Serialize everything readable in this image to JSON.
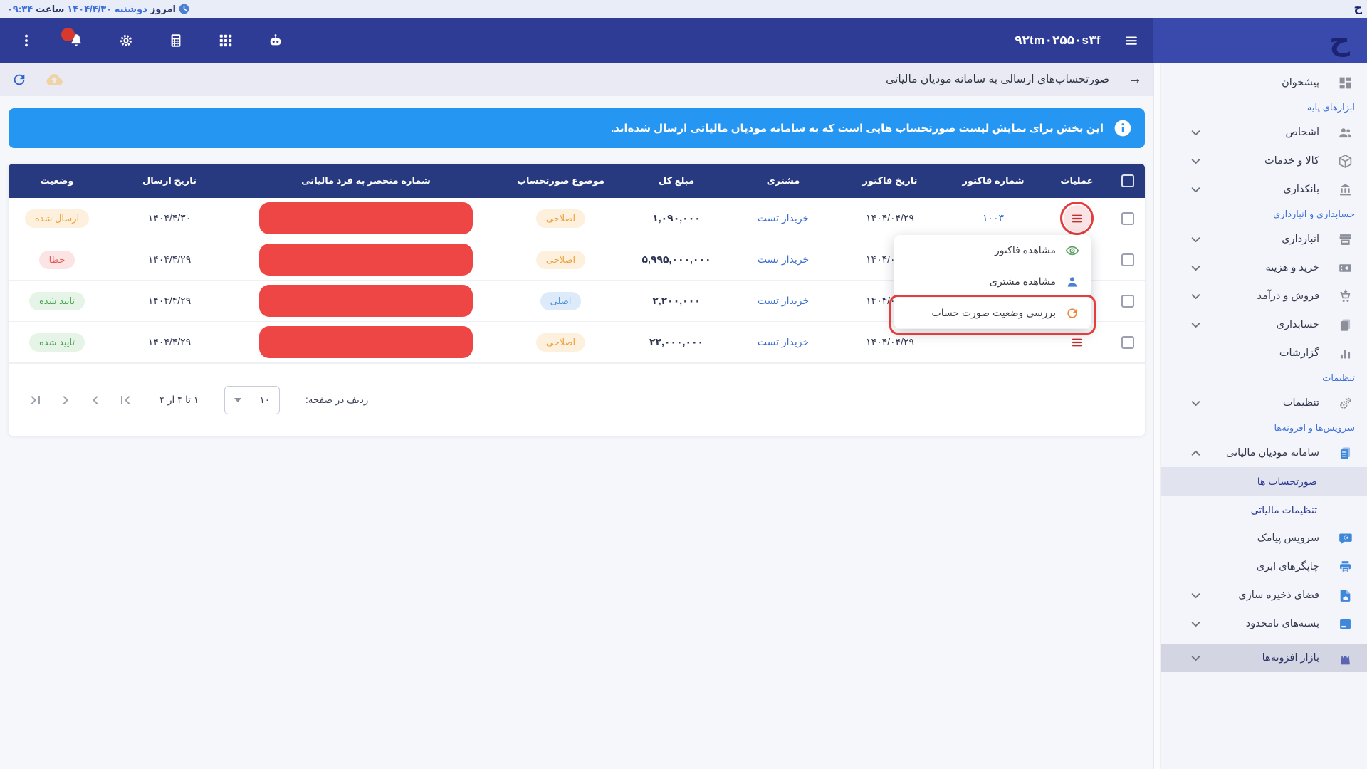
{
  "topbar": {
    "today_label": "امروز",
    "date": "دوشنبه ۱۴۰۴/۴/۳۰",
    "hour_label": "ساعت",
    "time": "۰۹:۳۴",
    "logo": "ح"
  },
  "navbar": {
    "business_id": "۹۲tm۰۲۵۵۰s۳f",
    "notification_badge": "۰",
    "icons": [
      "kebab-menu",
      "notifications-bell",
      "settings-gear",
      "calculator",
      "apps-grid",
      "assistant-robot"
    ]
  },
  "page": {
    "title": "صورتحساب‌های ارسالی به سامانه مودیان مالیاتی",
    "back_arrow": "→",
    "toolbar_icons": [
      "refresh",
      "cloud-upload"
    ]
  },
  "banner": {
    "text": "این بخش برای نمایش لیست صورتحساب هایی است که به سامانه مودیان مالیاتی ارسال شده‌اند.",
    "icon": "info"
  },
  "table": {
    "headers": {
      "ops": "عملیات",
      "invoice_no": "شماره فاکتور",
      "invoice_date": "تاریخ فاکتور",
      "customer": "مشتری",
      "total": "مبلغ کل",
      "subject": "موضوع صورتحساب",
      "tax_uid": "شماره منحصر به فرد مالیاتی",
      "send_date": "تاریخ ارسال",
      "status": "وضعیت"
    },
    "rows": [
      {
        "invoice_no": "۱۰۰۳",
        "invoice_date": "۱۴۰۴/۰۴/۲۹",
        "customer": "خریدار تست",
        "total": "۱,۰۹۰,۰۰۰",
        "subject": "اصلاحی",
        "subject_type": "edit",
        "send_date": "۱۴۰۴/۴/۳۰",
        "status": "ارسال شده",
        "status_type": "sent"
      },
      {
        "invoice_no": "",
        "invoice_date": "۱۴۰۴/۰۴/۲۹",
        "customer": "خریدار تست",
        "total": "۵,۹۹۵,۰۰۰,۰۰۰",
        "subject": "اصلاحی",
        "subject_type": "edit",
        "send_date": "۱۴۰۴/۴/۲۹",
        "status": "خطا",
        "status_type": "error"
      },
      {
        "invoice_no": "",
        "invoice_date": "۱۴۰۴/۰۴/۲۹",
        "customer": "خریدار تست",
        "total": "۲,۲۰۰,۰۰۰",
        "subject": "اصلی",
        "subject_type": "main",
        "send_date": "۱۴۰۴/۴/۲۹",
        "status": "تایید شده",
        "status_type": "approved"
      },
      {
        "invoice_no": "",
        "invoice_date": "۱۴۰۴/۰۴/۲۹",
        "customer": "خریدار تست",
        "total": "۲۲,۰۰۰,۰۰۰",
        "subject": "اصلاحی",
        "subject_type": "edit",
        "send_date": "۱۴۰۴/۴/۲۹",
        "status": "تایید شده",
        "status_type": "approved"
      }
    ]
  },
  "context_menu": {
    "items": [
      {
        "label": "مشاهده فاکتور",
        "icon": "eye"
      },
      {
        "label": "مشاهده مشتری",
        "icon": "person"
      },
      {
        "label": "بررسی وضعیت صورت حساب",
        "icon": "refresh-orange",
        "annotated": true
      }
    ]
  },
  "annotations": {
    "highlighted_row_action": "row-1-actions-button",
    "highlighted_menu_item": "بررسی وضعیت صورت حساب",
    "annotation_color": "#e43d3d"
  },
  "pagination": {
    "rows_per_page_label": "ردیف در صفحه:",
    "rows_per_page": "۱۰",
    "range": "۱ تا ۴ از ۴",
    "nav_icons": [
      "first-page",
      "prev-page",
      "next-page",
      "last-page"
    ]
  },
  "sidebar": {
    "logo": "ح",
    "items": [
      {
        "type": "item",
        "label": "پیشخوان",
        "icon": "dashboard",
        "icon_color": "gray",
        "chevron": "none"
      },
      {
        "type": "section",
        "label": "ابزارهای پایه"
      },
      {
        "type": "item",
        "label": "اشخاص",
        "icon": "people",
        "icon_color": "gray",
        "chevron": "down"
      },
      {
        "type": "item",
        "label": "کالا و خدمات",
        "icon": "package",
        "icon_color": "gray",
        "chevron": "down"
      },
      {
        "type": "item",
        "label": "بانکداری",
        "icon": "bank",
        "icon_color": "gray",
        "chevron": "down"
      },
      {
        "type": "section",
        "label": "حسابداری و انبارداری"
      },
      {
        "type": "item",
        "label": "انبارداری",
        "icon": "store",
        "icon_color": "gray",
        "chevron": "down"
      },
      {
        "type": "item",
        "label": "خرید و هزینه",
        "icon": "expense",
        "icon_color": "gray",
        "chevron": "down"
      },
      {
        "type": "item",
        "label": "فروش و درآمد",
        "icon": "cart",
        "icon_color": "gray",
        "chevron": "down"
      },
      {
        "type": "item",
        "label": "حسابداری",
        "icon": "pages",
        "icon_color": "gray",
        "chevron": "down"
      },
      {
        "type": "item",
        "label": "گزارشات",
        "icon": "chart",
        "icon_color": "gray",
        "chevron": "none"
      },
      {
        "type": "section",
        "label": "تنظیمات"
      },
      {
        "type": "item",
        "label": "تنظیمات",
        "icon": "gears",
        "icon_color": "gray",
        "chevron": "down"
      },
      {
        "type": "section",
        "label": "سرویس‌ها و افزونه‌ها"
      },
      {
        "type": "item",
        "label": "سامانه مودیان مالیاتی",
        "icon": "tax-doc",
        "icon_color": "blue",
        "chevron": "up"
      },
      {
        "type": "sub",
        "label": "صورتحساب ها",
        "active": true
      },
      {
        "type": "sub",
        "label": "تنظیمات مالیاتی"
      },
      {
        "type": "item",
        "label": "سرویس پیامک",
        "icon": "sms",
        "icon_color": "blue",
        "chevron": "none"
      },
      {
        "type": "item",
        "label": "چاپگرهای ابری",
        "icon": "printer",
        "icon_color": "blue",
        "chevron": "none"
      },
      {
        "type": "item",
        "label": "فضای ذخیره سازی",
        "icon": "storage",
        "icon_color": "blue",
        "chevron": "down"
      },
      {
        "type": "item",
        "label": "بسته‌های نامحدود",
        "icon": "unlimited",
        "icon_color": "blue",
        "chevron": "down"
      },
      {
        "type": "item",
        "label": "بازار افزونه‌ها",
        "icon": "bag",
        "icon_color": "purple",
        "chevron": "down",
        "highlight": true
      }
    ]
  },
  "colors": {
    "navbar": "#2e3c96",
    "sidebar_header": "#3a49ac",
    "table_header": "#27397f",
    "banner": "#2596f2",
    "redaction": "#ee4545",
    "annotation": "#e43d3d",
    "link": "#3e6fd0",
    "badge_orange": "#ef9f3f",
    "badge_red": "#e05a5a",
    "badge_green": "#47a351",
    "badge_blue": "#4a90d9"
  }
}
